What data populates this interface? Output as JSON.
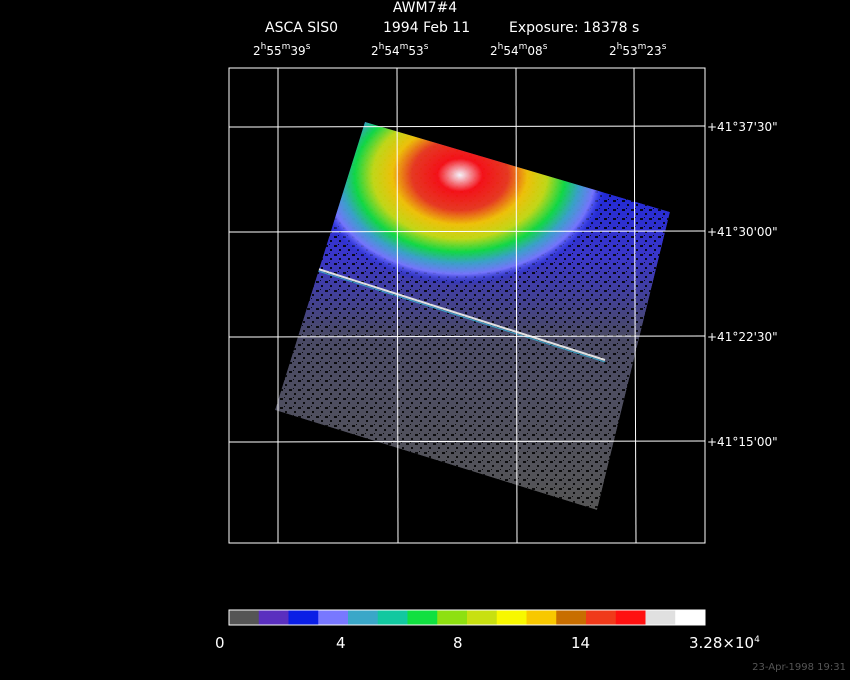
{
  "header": {
    "target": "AWM7#4",
    "instrument": "ASCA SIS0",
    "date": "1994 Feb 11",
    "exposure": "Exposure: 18378 s"
  },
  "ra_ticks": [
    {
      "h": "2",
      "m": "55",
      "s": "39"
    },
    {
      "h": "2",
      "m": "54",
      "s": "53"
    },
    {
      "h": "2",
      "m": "54",
      "s": "08"
    },
    {
      "h": "2",
      "m": "53",
      "s": "23"
    }
  ],
  "dec_ticks": [
    "+41°37'30\"",
    "+41°30'00\"",
    "+41°22'30\"",
    "+41°15'00\""
  ],
  "colorbar": {
    "labels": [
      "0",
      "4",
      "8",
      "14"
    ],
    "max_label_mantissa": "3.28×10",
    "max_label_exp": "4",
    "colors": [
      "#555555",
      "#5a2fbf",
      "#0a1ee6",
      "#7878ff",
      "#3aa7c8",
      "#12c8a0",
      "#10e040",
      "#8ee010",
      "#c8e010",
      "#f8f800",
      "#f8c800",
      "#c86e00",
      "#f03a1a",
      "#ff1010",
      "#e0e0e0",
      "#ffffff"
    ]
  },
  "timestamp": "23-Apr-1998 19:31"
}
